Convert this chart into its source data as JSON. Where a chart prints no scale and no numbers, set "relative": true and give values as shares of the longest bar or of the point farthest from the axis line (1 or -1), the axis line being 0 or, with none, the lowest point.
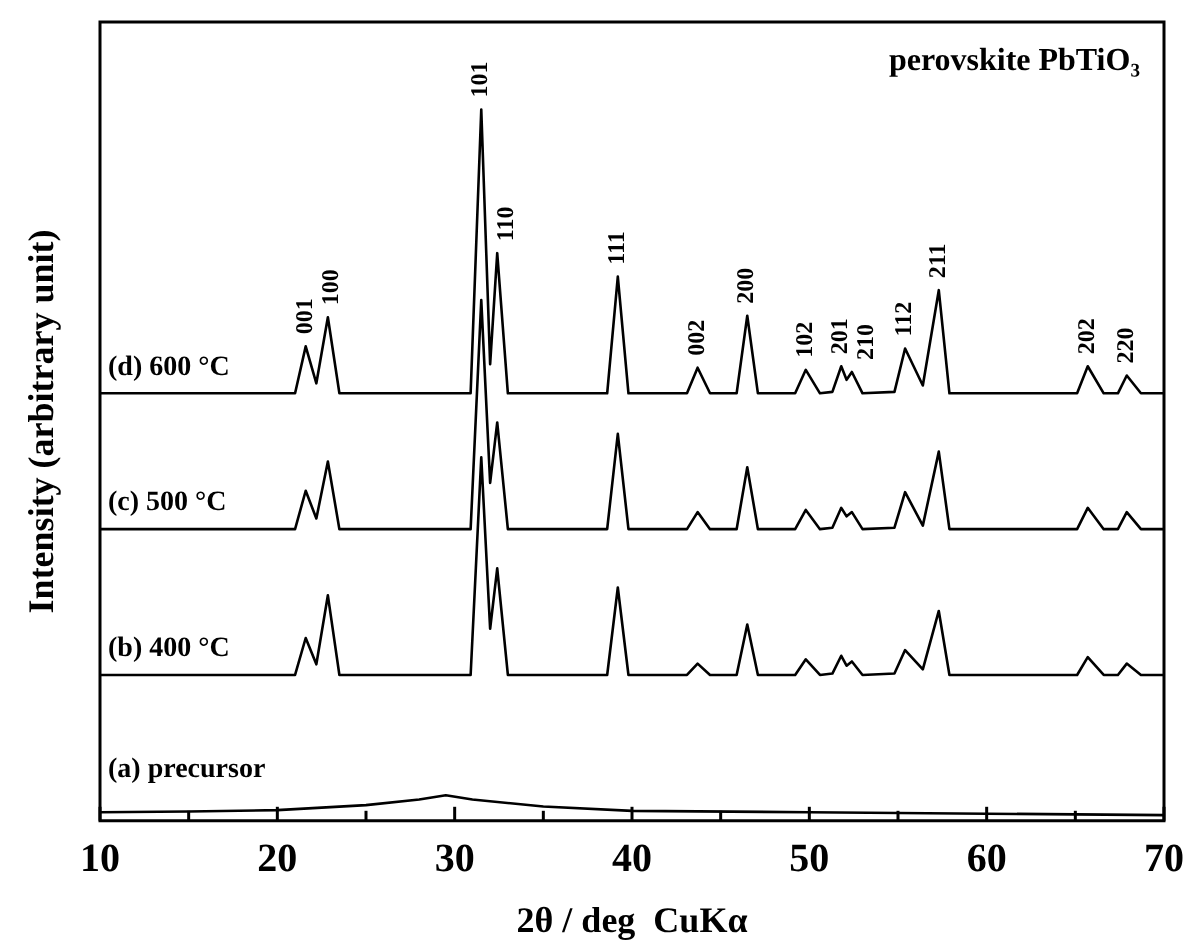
{
  "chart_data": {
    "type": "line",
    "title": "perovskite PbTiO₃",
    "xlabel": "2θ / deg  CuKα",
    "ylabel": "Intensity (arbitrary unit)",
    "relative": true,
    "marker": "none",
    "line_style": "solid",
    "tick_labels": "x",
    "xlim": [
      10,
      70
    ],
    "xticks": [
      10,
      {
        "value": 15,
        "label": null
      },
      20,
      {
        "value": 25,
        "label": null
      },
      30,
      {
        "value": 35,
        "label": null
      },
      40,
      {
        "value": 45,
        "label": null
      },
      50,
      {
        "value": 55,
        "label": null
      },
      60,
      {
        "value": 65,
        "label": null
      },
      70
    ],
    "x": [
      10,
      21.0,
      21.6,
      22.2,
      22.85,
      23.5,
      30.9,
      31.5,
      32.0,
      32.4,
      33.0,
      38.6,
      39.2,
      39.8,
      43.1,
      43.7,
      44.4,
      45.9,
      46.5,
      47.1,
      49.2,
      49.8,
      50.6,
      51.3,
      51.8,
      52.1,
      52.4,
      53.0,
      54.8,
      55.4,
      56.4,
      57.3,
      57.9,
      65.1,
      65.7,
      66.6,
      67.4,
      67.9,
      68.7,
      70
    ],
    "series": [
      {
        "name": "(d) 600 °C",
        "color": "#000000",
        "values": [
          0.601,
          0.601,
          0.667,
          0.615,
          0.708,
          0.601,
          0.601,
          1.0,
          0.642,
          0.798,
          0.601,
          0.601,
          0.765,
          0.601,
          0.601,
          0.637,
          0.601,
          0.601,
          0.71,
          0.601,
          0.601,
          0.634,
          0.601,
          0.603,
          0.639,
          0.62,
          0.631,
          0.601,
          0.603,
          0.664,
          0.612,
          0.746,
          0.601,
          0.601,
          0.639,
          0.601,
          0.601,
          0.626,
          0.601,
          0.601
        ]
      },
      {
        "name": "(c) 500 °C",
        "color": "#000000",
        "values": [
          0.41,
          0.41,
          0.464,
          0.425,
          0.505,
          0.41,
          0.41,
          0.732,
          0.475,
          0.56,
          0.41,
          0.41,
          0.544,
          0.41,
          0.41,
          0.434,
          0.41,
          0.41,
          0.497,
          0.41,
          0.41,
          0.437,
          0.41,
          0.412,
          0.44,
          0.428,
          0.434,
          0.41,
          0.412,
          0.462,
          0.415,
          0.519,
          0.41,
          0.41,
          0.44,
          0.41,
          0.41,
          0.434,
          0.41,
          0.41
        ]
      },
      {
        "name": "(b) 400 °C",
        "color": "#000000",
        "values": [
          0.205,
          0.205,
          0.257,
          0.22,
          0.317,
          0.205,
          0.205,
          0.511,
          0.27,
          0.355,
          0.205,
          0.205,
          0.328,
          0.205,
          0.205,
          0.221,
          0.205,
          0.205,
          0.276,
          0.205,
          0.205,
          0.227,
          0.205,
          0.207,
          0.232,
          0.218,
          0.224,
          0.205,
          0.207,
          0.24,
          0.213,
          0.295,
          0.205,
          0.205,
          0.23,
          0.205,
          0.205,
          0.221,
          0.205,
          0.205
        ]
      },
      {
        "name": "(a) precursor",
        "color": "#000000",
        "x": [
          10,
          15,
          20,
          25,
          28,
          29.5,
          31,
          35,
          40,
          50,
          60,
          70
        ],
        "values": [
          0.012,
          0.013,
          0.015,
          0.022,
          0.03,
          0.036,
          0.03,
          0.02,
          0.014,
          0.012,
          0.01,
          0.008
        ]
      }
    ],
    "annotations": [
      {
        "text": "001",
        "x": 21.6,
        "y": 0.667
      },
      {
        "text": "100",
        "x": 22.85,
        "y": 0.708
      },
      {
        "text": "101",
        "x": 31.5,
        "y": 1.0
      },
      {
        "text": "110",
        "x": 32.4,
        "y": 0.798
      },
      {
        "text": "111",
        "x": 39.2,
        "y": 0.765
      },
      {
        "text": "002",
        "x": 43.7,
        "y": 0.637
      },
      {
        "text": "200",
        "x": 46.5,
        "y": 0.71
      },
      {
        "text": "102",
        "x": 49.8,
        "y": 0.634
      },
      {
        "text": "201",
        "x": 51.8,
        "y": 0.639
      },
      {
        "text": "210",
        "x": 52.4,
        "y": 0.631
      },
      {
        "text": "112",
        "x": 55.4,
        "y": 0.664
      },
      {
        "text": "211",
        "x": 57.3,
        "y": 0.746
      },
      {
        "text": "202",
        "x": 65.7,
        "y": 0.639
      },
      {
        "text": "220",
        "x": 67.9,
        "y": 0.626
      }
    ]
  }
}
